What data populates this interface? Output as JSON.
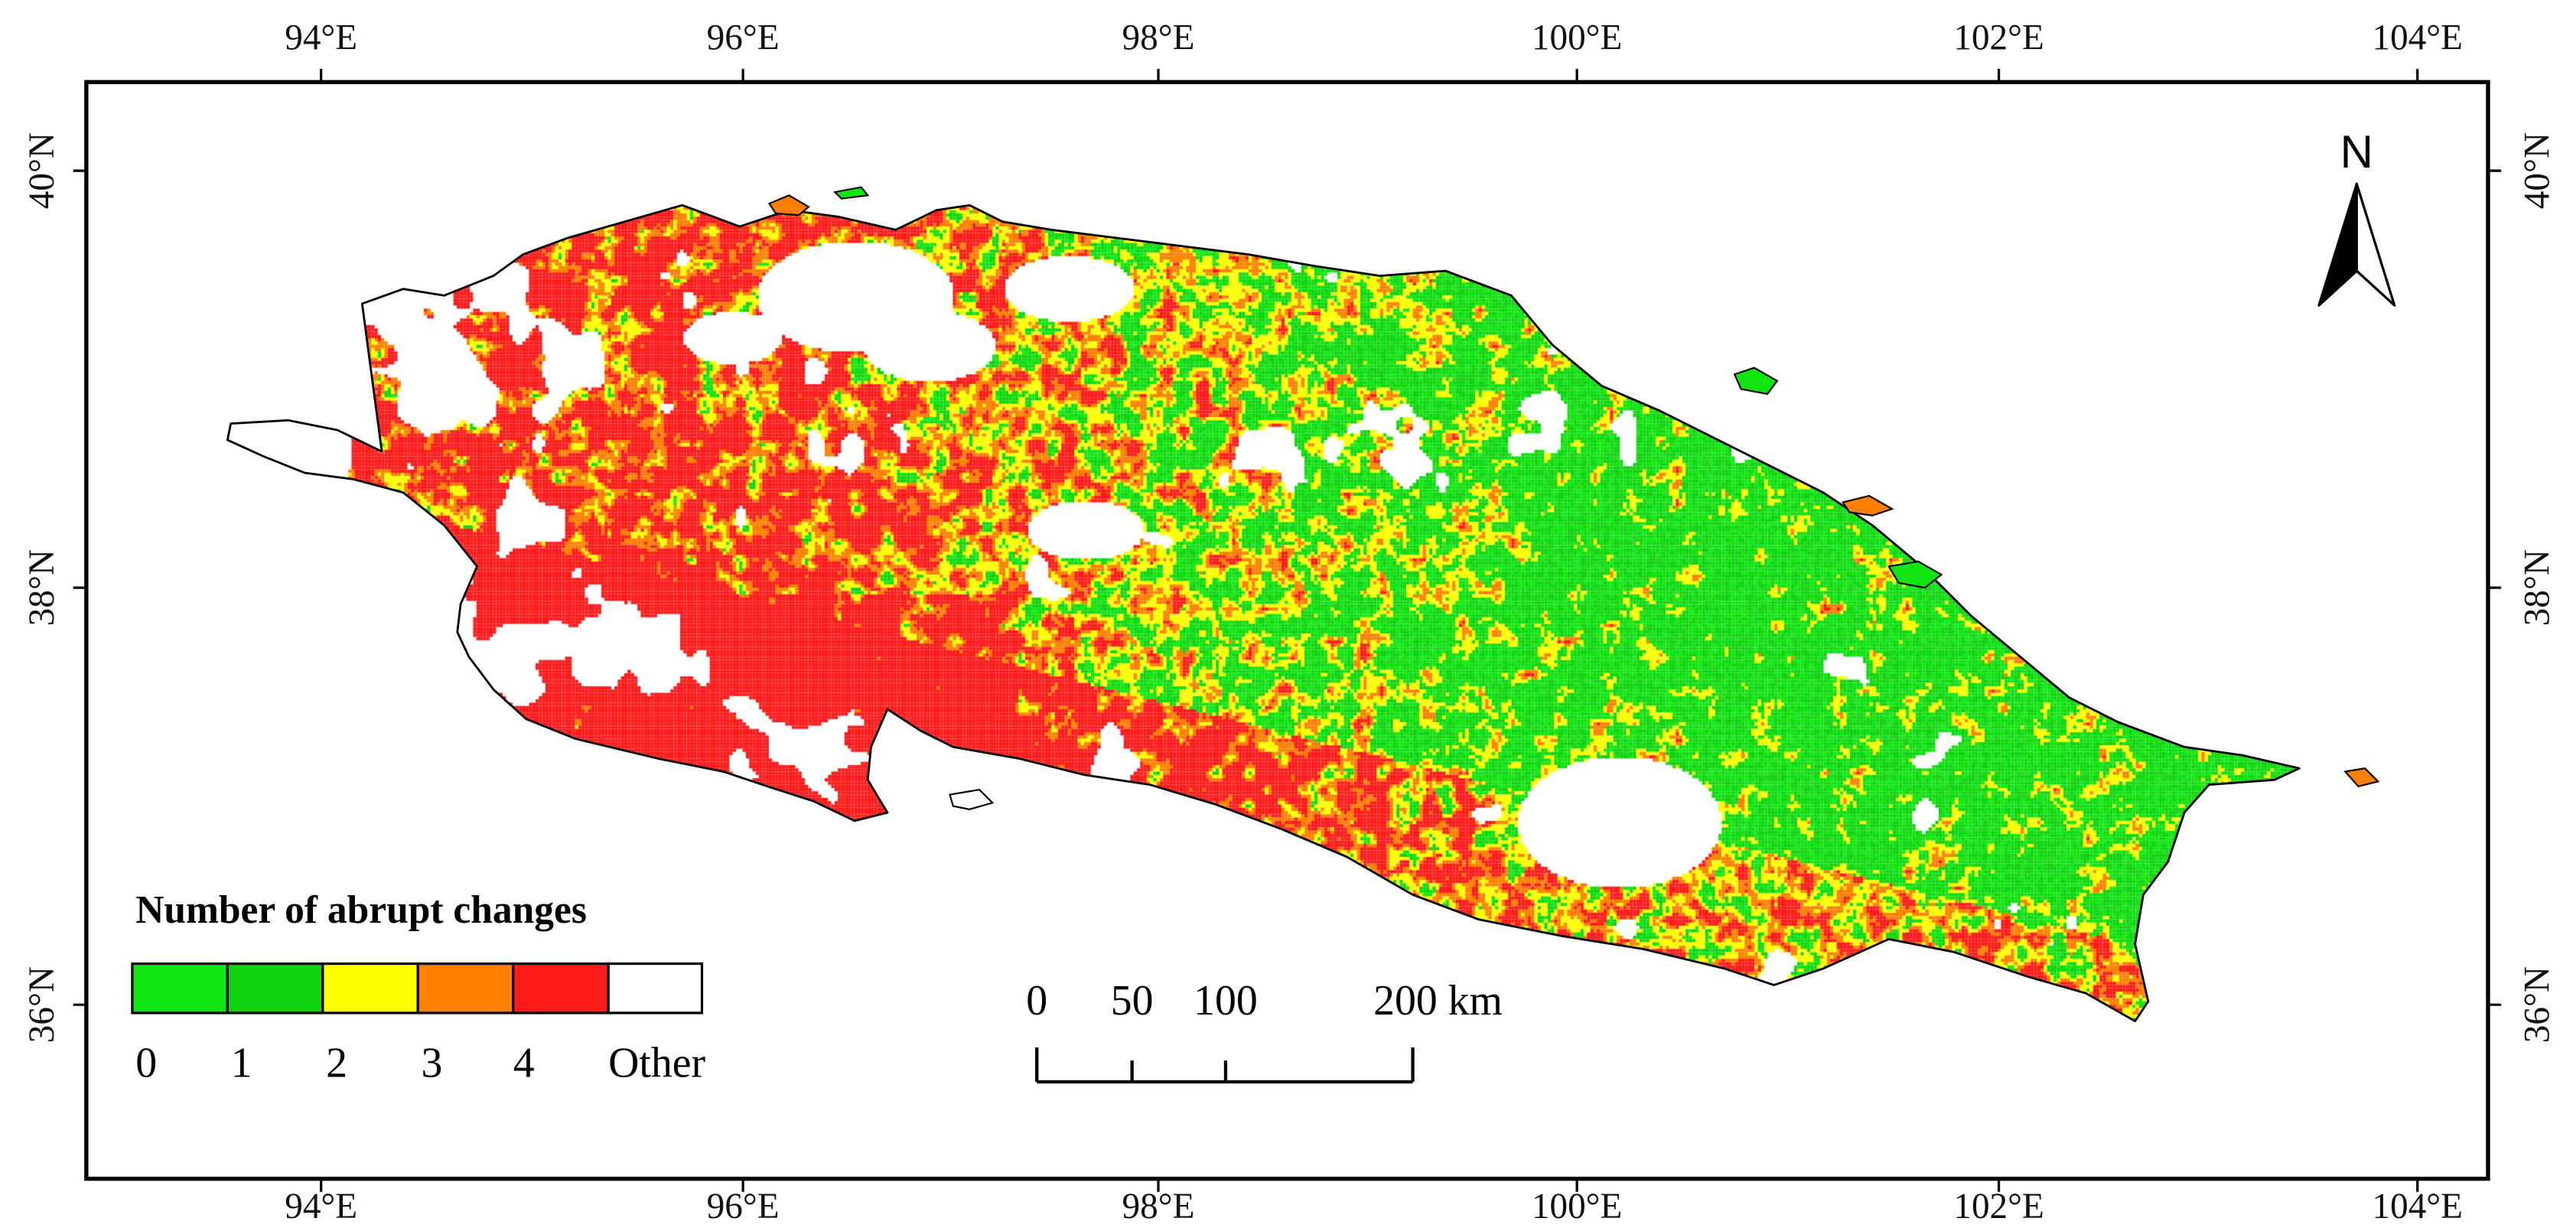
{
  "axes": {
    "top": [
      "94°E",
      "96°E",
      "98°E",
      "100°E",
      "102°E",
      "104°E"
    ],
    "bottom": [
      "94°E",
      "96°E",
      "98°E",
      "100°E",
      "102°E",
      "104°E"
    ],
    "left": [
      "40°N",
      "38°N",
      "36°N"
    ],
    "right": [
      "40°N",
      "38°N",
      "36°N"
    ]
  },
  "north_arrow": {
    "label": "N"
  },
  "legend": {
    "title": "Number of abrupt changes",
    "items": [
      {
        "label": "0",
        "color": "#12e612"
      },
      {
        "label": "1",
        "color": "#0fd40f"
      },
      {
        "label": "2",
        "color": "#ffff00"
      },
      {
        "label": "3",
        "color": "#ff7f00"
      },
      {
        "label": "4",
        "color": "#ff1a1a"
      },
      {
        "label": "Other",
        "color": "#ffffff"
      }
    ]
  },
  "scale_bar": {
    "labels": [
      "0",
      "50",
      "100",
      "200 km"
    ]
  }
}
